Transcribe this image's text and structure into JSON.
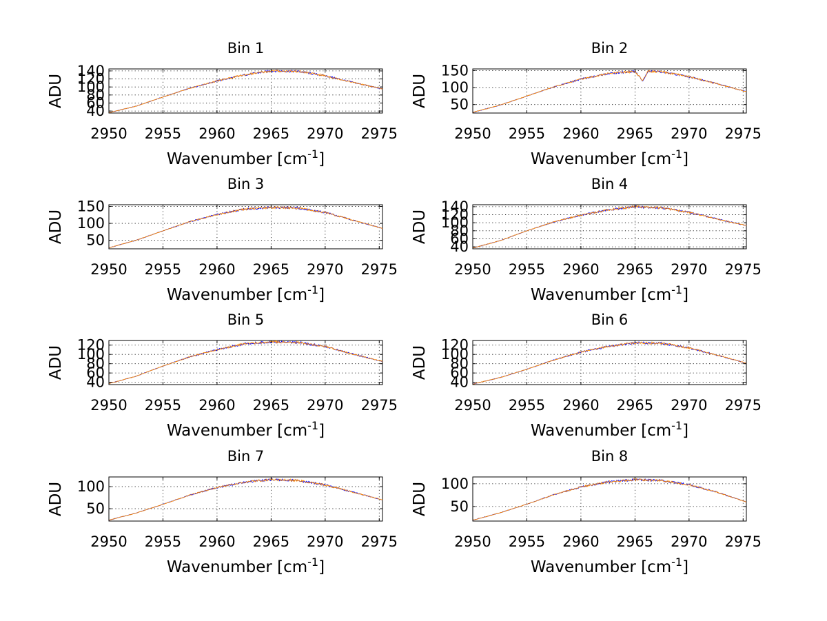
{
  "chart_data": [
    {
      "type": "line",
      "title": "Bin 1",
      "xlabel": "Wavenumber [cm",
      "xlabel_sup": "-1",
      "xlabel_tail": "]",
      "ylabel": "ADU",
      "xlim": [
        2950,
        2975.3
      ],
      "ylim": [
        35,
        145
      ],
      "xticks": [
        2950,
        2955,
        2960,
        2965,
        2970,
        2975
      ],
      "yticks": [
        40,
        60,
        80,
        100,
        120,
        140
      ],
      "ytick_labels": [
        "40",
        "60",
        "80",
        "100",
        "120",
        "140"
      ],
      "grid": true,
      "series": [
        {
          "color": "#0000ff",
          "x": [
            2950,
            2952.5,
            2955,
            2957.5,
            2960,
            2962.5,
            2965,
            2967.5,
            2970,
            2972.5,
            2975.3
          ],
          "y": [
            36,
            52,
            75,
            97,
            115,
            130,
            140,
            139,
            128,
            112,
            95
          ]
        },
        {
          "color": "#ff8c00",
          "x": [
            2950,
            2952.5,
            2955,
            2957.5,
            2960,
            2962.5,
            2965,
            2967.5,
            2970,
            2972.5,
            2975.3
          ],
          "y": [
            36,
            52,
            75,
            97,
            115,
            130,
            140,
            139,
            128,
            112,
            95
          ]
        }
      ]
    },
    {
      "type": "line",
      "title": "Bin 2",
      "xlabel": "Wavenumber [cm",
      "xlabel_sup": "-1",
      "xlabel_tail": "]",
      "ylabel": "ADU",
      "xlim": [
        2950,
        2975.3
      ],
      "ylim": [
        25,
        155
      ],
      "xticks": [
        2950,
        2955,
        2960,
        2965,
        2970,
        2975
      ],
      "yticks": [
        50,
        100,
        150
      ],
      "ytick_labels": [
        "50",
        "100",
        "150"
      ],
      "grid": true,
      "series": [
        {
          "color": "#0000ff",
          "x": [
            2950,
            2952.5,
            2955,
            2957.5,
            2960,
            2962.5,
            2965,
            2965.7,
            2966.2,
            2967.5,
            2970,
            2972.5,
            2975.3
          ],
          "y": [
            27,
            48,
            75,
            102,
            125,
            141,
            148,
            120,
            148,
            146,
            132,
            112,
            88
          ]
        },
        {
          "color": "#ff8c00",
          "x": [
            2950,
            2952.5,
            2955,
            2957.5,
            2960,
            2962.5,
            2965,
            2965.7,
            2966.2,
            2967.5,
            2970,
            2972.5,
            2975.3
          ],
          "y": [
            27,
            48,
            75,
            102,
            125,
            141,
            148,
            120,
            148,
            146,
            132,
            112,
            88
          ]
        }
      ]
    },
    {
      "type": "line",
      "title": "Bin 3",
      "xlabel": "Wavenumber [cm",
      "xlabel_sup": "-1",
      "xlabel_tail": "]",
      "ylabel": "ADU",
      "xlim": [
        2950,
        2975.3
      ],
      "ylim": [
        25,
        155
      ],
      "xticks": [
        2950,
        2955,
        2960,
        2965,
        2970,
        2975
      ],
      "yticks": [
        50,
        100,
        150
      ],
      "ytick_labels": [
        "50",
        "100",
        "150"
      ],
      "grid": true,
      "series": [
        {
          "color": "#0000ff",
          "x": [
            2950,
            2952.5,
            2955,
            2957.5,
            2960,
            2962.5,
            2965,
            2967.5,
            2970,
            2972.5,
            2975.3
          ],
          "y": [
            28,
            50,
            78,
            105,
            126,
            142,
            147,
            145,
            132,
            110,
            85
          ]
        },
        {
          "color": "#ff8c00",
          "x": [
            2950,
            2952.5,
            2955,
            2957.5,
            2960,
            2962.5,
            2965,
            2967.5,
            2970,
            2972.5,
            2975.3
          ],
          "y": [
            28,
            50,
            78,
            105,
            126,
            142,
            147,
            145,
            132,
            110,
            85
          ]
        }
      ]
    },
    {
      "type": "line",
      "title": "Bin 4",
      "xlabel": "Wavenumber [cm",
      "xlabel_sup": "-1",
      "xlabel_tail": "]",
      "ylabel": "ADU",
      "xlim": [
        2950,
        2975.3
      ],
      "ylim": [
        35,
        145
      ],
      "xticks": [
        2950,
        2955,
        2960,
        2965,
        2970,
        2975
      ],
      "yticks": [
        40,
        60,
        80,
        100,
        120,
        140
      ],
      "ytick_labels": [
        "40",
        "60",
        "80",
        "100",
        "120",
        "140"
      ],
      "grid": true,
      "series": [
        {
          "color": "#0000ff",
          "x": [
            2950,
            2952.5,
            2955,
            2957.5,
            2960,
            2962.5,
            2965,
            2967.5,
            2970,
            2972.5,
            2975.3
          ],
          "y": [
            37,
            55,
            80,
            102,
            119,
            132,
            140,
            137,
            126,
            110,
            93
          ]
        },
        {
          "color": "#ff8c00",
          "x": [
            2950,
            2952.5,
            2955,
            2957.5,
            2960,
            2962.5,
            2965,
            2967.5,
            2970,
            2972.5,
            2975.3
          ],
          "y": [
            37,
            55,
            80,
            102,
            119,
            132,
            140,
            137,
            126,
            110,
            93
          ]
        }
      ]
    },
    {
      "type": "line",
      "title": "Bin 5",
      "xlabel": "Wavenumber [cm",
      "xlabel_sup": "-1",
      "xlabel_tail": "]",
      "ylabel": "ADU",
      "xlim": [
        2950,
        2975.3
      ],
      "ylim": [
        35,
        130
      ],
      "xticks": [
        2950,
        2955,
        2960,
        2965,
        2970,
        2975
      ],
      "yticks": [
        40,
        60,
        80,
        100,
        120
      ],
      "ytick_labels": [
        "40",
        "60",
        "80",
        "100",
        "120"
      ],
      "grid": true,
      "series": [
        {
          "color": "#0000ff",
          "x": [
            2950,
            2952.5,
            2955,
            2957.5,
            2960,
            2962.5,
            2965,
            2967.5,
            2970,
            2972.5,
            2975.3
          ],
          "y": [
            37,
            53,
            75,
            95,
            110,
            123,
            127,
            126,
            117,
            101,
            85
          ]
        },
        {
          "color": "#ff8c00",
          "x": [
            2950,
            2952.5,
            2955,
            2957.5,
            2960,
            2962.5,
            2965,
            2967.5,
            2970,
            2972.5,
            2975.3
          ],
          "y": [
            37,
            53,
            75,
            95,
            110,
            123,
            127,
            126,
            117,
            101,
            85
          ]
        }
      ]
    },
    {
      "type": "line",
      "title": "Bin 6",
      "xlabel": "Wavenumber [cm",
      "xlabel_sup": "-1",
      "xlabel_tail": "]",
      "ylabel": "ADU",
      "xlim": [
        2950,
        2975.3
      ],
      "ylim": [
        35,
        130
      ],
      "xticks": [
        2950,
        2955,
        2960,
        2965,
        2970,
        2975
      ],
      "yticks": [
        40,
        60,
        80,
        100,
        120
      ],
      "ytick_labels": [
        "40",
        "60",
        "80",
        "100",
        "120"
      ],
      "grid": true,
      "series": [
        {
          "color": "#0000ff",
          "x": [
            2950,
            2952.5,
            2955,
            2957.5,
            2960,
            2962.5,
            2965,
            2967.5,
            2970,
            2972.5,
            2975.3
          ],
          "y": [
            36,
            50,
            68,
            88,
            105,
            117,
            125,
            124,
            114,
            99,
            81
          ]
        },
        {
          "color": "#ff8c00",
          "x": [
            2950,
            2952.5,
            2955,
            2957.5,
            2960,
            2962.5,
            2965,
            2967.5,
            2970,
            2972.5,
            2975.3
          ],
          "y": [
            36,
            50,
            68,
            88,
            105,
            117,
            125,
            124,
            114,
            99,
            81
          ]
        }
      ]
    },
    {
      "type": "line",
      "title": "Bin 7",
      "xlabel": "Wavenumber [cm",
      "xlabel_sup": "-1",
      "xlabel_tail": "]",
      "ylabel": "ADU",
      "xlim": [
        2950,
        2975.3
      ],
      "ylim": [
        22,
        122
      ],
      "xticks": [
        2950,
        2955,
        2960,
        2965,
        2970,
        2975
      ],
      "yticks": [
        50,
        100
      ],
      "ytick_labels": [
        "50",
        "100"
      ],
      "grid": true,
      "series": [
        {
          "color": "#0000ff",
          "x": [
            2950,
            2952.5,
            2955,
            2957.5,
            2960,
            2962.5,
            2965,
            2967.5,
            2970,
            2972.5,
            2975.3
          ],
          "y": [
            24,
            40,
            60,
            81,
            98,
            110,
            116,
            114,
            104,
            88,
            70
          ]
        },
        {
          "color": "#ff8c00",
          "x": [
            2950,
            2952.5,
            2955,
            2957.5,
            2960,
            2962.5,
            2965,
            2967.5,
            2970,
            2972.5,
            2975.3
          ],
          "y": [
            24,
            40,
            60,
            81,
            98,
            110,
            116,
            114,
            104,
            88,
            70
          ]
        }
      ]
    },
    {
      "type": "line",
      "title": "Bin 8",
      "xlabel": "Wavenumber [cm",
      "xlabel_sup": "-1",
      "xlabel_tail": "]",
      "ylabel": "ADU",
      "xlim": [
        2950,
        2975.3
      ],
      "ylim": [
        18,
        115
      ],
      "xticks": [
        2950,
        2955,
        2960,
        2965,
        2970,
        2975
      ],
      "yticks": [
        50,
        100
      ],
      "ytick_labels": [
        "50",
        "100"
      ],
      "grid": true,
      "series": [
        {
          "color": "#0000ff",
          "x": [
            2950,
            2952.5,
            2955,
            2957.5,
            2960,
            2962.5,
            2965,
            2967.5,
            2970,
            2972.5,
            2975.3
          ],
          "y": [
            20,
            36,
            55,
            76,
            93,
            104,
            109,
            107,
            98,
            82,
            60
          ]
        },
        {
          "color": "#ff8c00",
          "x": [
            2950,
            2952.5,
            2955,
            2957.5,
            2960,
            2962.5,
            2965,
            2967.5,
            2970,
            2972.5,
            2975.3
          ],
          "y": [
            20,
            36,
            55,
            76,
            93,
            104,
            109,
            107,
            98,
            82,
            60
          ]
        }
      ]
    }
  ]
}
